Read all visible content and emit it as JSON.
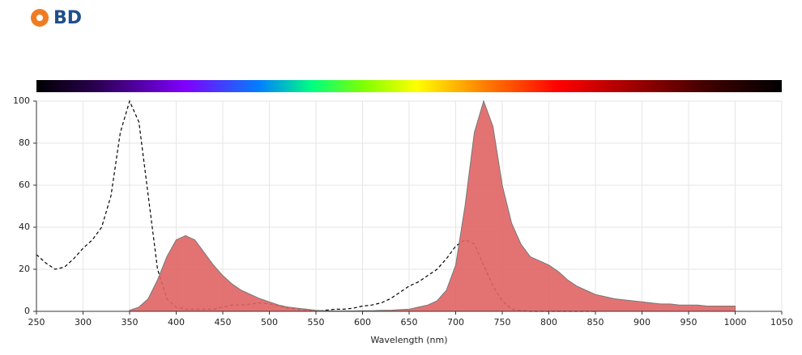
{
  "logo": "BD",
  "chart_data": {
    "type": "spectrum",
    "x_label": "Wavelength (nm)",
    "x": [
      250,
      260,
      270,
      280,
      290,
      300,
      310,
      320,
      330,
      340,
      350,
      360,
      370,
      380,
      390,
      400,
      410,
      420,
      430,
      440,
      450,
      460,
      470,
      480,
      490,
      500,
      510,
      520,
      530,
      540,
      550,
      560,
      570,
      580,
      590,
      600,
      610,
      620,
      630,
      640,
      650,
      660,
      670,
      680,
      690,
      700,
      710,
      720,
      730,
      740,
      750,
      760,
      770,
      780,
      790,
      800,
      810,
      820,
      830,
      840,
      850,
      860,
      870,
      880,
      890,
      900,
      910,
      920,
      930,
      940,
      950,
      960,
      970,
      980,
      990,
      1000
    ],
    "series": [
      {
        "style": "dashed",
        "color": "#000000",
        "values": [
          27,
          23,
          20,
          21,
          25,
          30,
          34,
          40,
          55,
          85,
          100,
          90,
          55,
          20,
          6,
          2,
          1,
          1,
          1,
          1,
          2,
          3,
          3,
          3.5,
          4,
          3.5,
          2.5,
          1.5,
          1,
          0.5,
          0,
          0.5,
          1,
          1,
          1.5,
          2.5,
          3,
          4,
          6,
          9,
          12,
          14,
          17,
          20,
          25,
          31,
          34,
          32,
          22,
          12,
          5,
          1,
          0.5,
          0,
          0,
          0,
          0,
          0,
          0,
          0,
          0,
          null,
          null,
          null,
          null,
          null,
          null,
          null,
          null,
          null,
          null,
          null,
          null,
          null,
          null,
          null
        ]
      },
      {
        "style": "filled",
        "color": "#e06464",
        "values": [
          null,
          null,
          null,
          null,
          null,
          null,
          null,
          null,
          null,
          null,
          0.5,
          2,
          6,
          15,
          26,
          34,
          36,
          34,
          28,
          22,
          17,
          13,
          10,
          8,
          6,
          4.5,
          3,
          2,
          1.5,
          1,
          0.5,
          0.3,
          0.2,
          0.2,
          0.2,
          0.3,
          0.3,
          0.5,
          0.5,
          0.8,
          1,
          2,
          3,
          5,
          10,
          22,
          50,
          85,
          100,
          88,
          60,
          42,
          32,
          26,
          24,
          22,
          19,
          15,
          12,
          10,
          8,
          7,
          6,
          5.5,
          5,
          4.5,
          4,
          3.5,
          3.5,
          3,
          3,
          3,
          2.5,
          2.5,
          2.5,
          2.5
        ]
      }
    ],
    "xlim": [
      250,
      1050
    ],
    "xticks": [
      250,
      300,
      350,
      400,
      450,
      500,
      550,
      600,
      650,
      700,
      750,
      800,
      850,
      900,
      950,
      1000,
      1050
    ],
    "ylim": [
      0,
      100
    ],
    "yticks": [
      0,
      20,
      40,
      60,
      80,
      100
    ],
    "grid": true
  }
}
